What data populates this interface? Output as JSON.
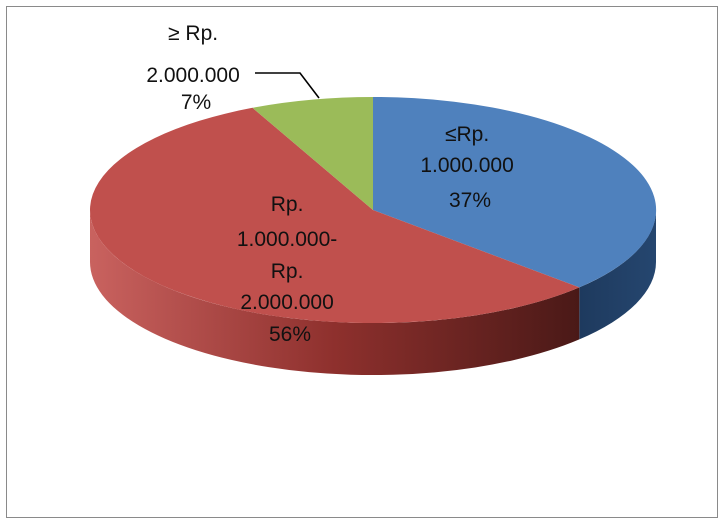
{
  "chart_data": {
    "type": "pie",
    "style": "3d",
    "slices": [
      {
        "label_lines": [
          "≤Rp.",
          "1.000.000"
        ],
        "percent_label": "37%",
        "value": 37,
        "color": "#4F81BD"
      },
      {
        "label_lines": [
          "Rp.",
          "1.000.000-",
          "Rp.",
          "2.000.000"
        ],
        "percent_label": "56%",
        "value": 56,
        "color": "#C0504D"
      },
      {
        "label_lines": [
          "≥  Rp.",
          "2.000.000"
        ],
        "percent_label": "7%",
        "value": 7,
        "color": "#9BBB59"
      }
    ]
  }
}
